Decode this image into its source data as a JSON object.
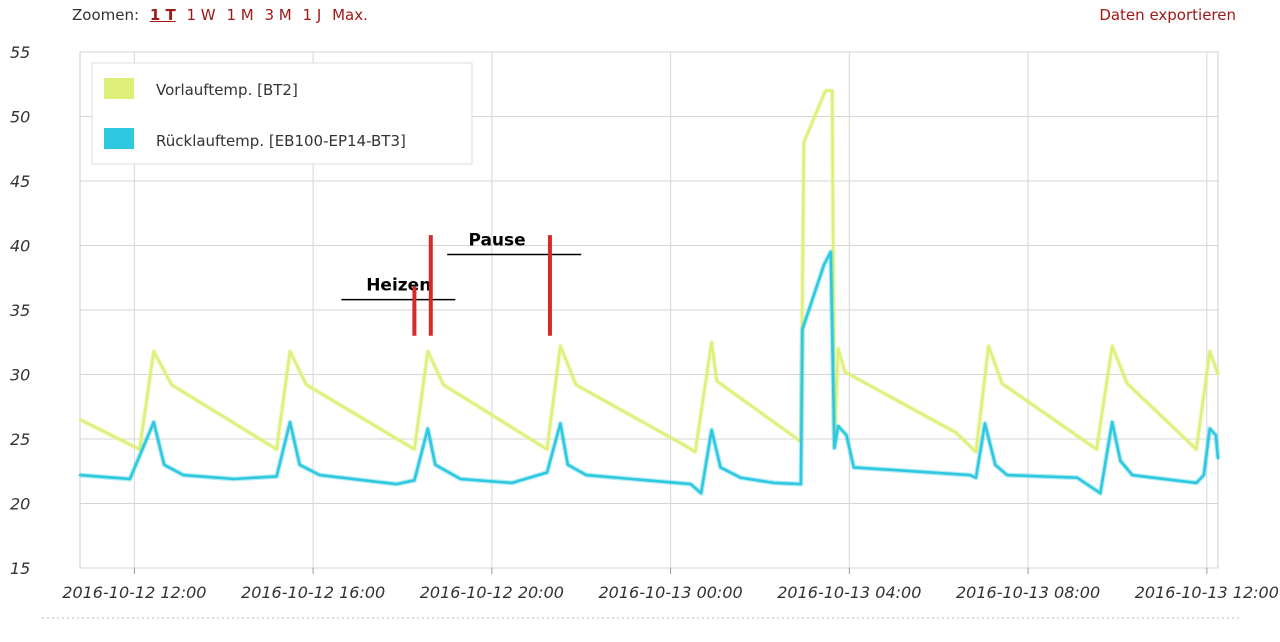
{
  "toolbar": {
    "zoom_label": "Zoomen:",
    "zoom_options": [
      "1 T",
      "1 W",
      "1 M",
      "3 M",
      "1 J",
      "Max."
    ],
    "active_zoom": 0,
    "export_label": "Daten exportieren"
  },
  "chart_data": {
    "type": "line",
    "xlabel": "",
    "ylabel": "",
    "ylim": [
      15,
      55
    ],
    "yticks": [
      "15",
      "20",
      "25",
      "30",
      "35",
      "40",
      "45",
      "50",
      "55"
    ],
    "xlim": [
      "2016-10-12 10:47",
      "2016-10-13 12:15"
    ],
    "xticks": [
      "2016-10-12 12:00",
      "2016-10-12 16:00",
      "2016-10-12 20:00",
      "2016-10-13 00:00",
      "2016-10-13 04:00",
      "2016-10-13 08:00",
      "2016-10-13 12:00"
    ],
    "grid": true,
    "legend": "top-left",
    "series": [
      {
        "name": "Vorlauftemp. [BT2]",
        "color": "#dff07a",
        "points": [
          [
            "2016-10-12 10:47",
            26.5
          ],
          [
            "2016-10-12 12:07",
            24.2
          ],
          [
            "2016-10-12 12:26",
            31.8
          ],
          [
            "2016-10-12 12:50",
            29.2
          ],
          [
            "2016-10-12 15:11",
            24.2
          ],
          [
            "2016-10-12 15:29",
            31.8
          ],
          [
            "2016-10-12 15:51",
            29.2
          ],
          [
            "2016-10-12 18:16",
            24.2
          ],
          [
            "2016-10-12 18:34",
            31.8
          ],
          [
            "2016-10-12 18:55",
            29.2
          ],
          [
            "2016-10-12 21:14",
            24.2
          ],
          [
            "2016-10-12 21:32",
            32.2
          ],
          [
            "2016-10-12 21:53",
            29.2
          ],
          [
            "2016-10-13 00:19",
            24.5
          ],
          [
            "2016-10-13 00:33",
            24.0
          ],
          [
            "2016-10-13 00:55",
            32.5
          ],
          [
            "2016-10-13 01:02",
            29.5
          ],
          [
            "2016-10-13 02:55",
            24.8
          ],
          [
            "2016-10-13 02:59",
            48.0
          ],
          [
            "2016-10-13 03:28",
            52.0
          ],
          [
            "2016-10-13 03:37",
            52.0
          ],
          [
            "2016-10-13 03:40",
            24.5
          ],
          [
            "2016-10-13 03:45",
            32.0
          ],
          [
            "2016-10-13 03:54",
            30.2
          ],
          [
            "2016-10-13 06:23",
            25.5
          ],
          [
            "2016-10-13 06:50",
            24.0
          ],
          [
            "2016-10-13 07:07",
            32.2
          ],
          [
            "2016-10-13 07:25",
            29.3
          ],
          [
            "2016-10-13 09:32",
            24.2
          ],
          [
            "2016-10-13 09:53",
            32.2
          ],
          [
            "2016-10-13 10:13",
            29.3
          ],
          [
            "2016-10-13 11:46",
            24.2
          ],
          [
            "2016-10-13 12:04",
            31.8
          ],
          [
            "2016-10-13 12:15",
            30.0
          ]
        ]
      },
      {
        "name": "Rücklauftemp. [EB100-EP14-BT3]",
        "color": "#2ec8e0",
        "points": [
          [
            "2016-10-12 10:47",
            22.2
          ],
          [
            "2016-10-12 11:54",
            21.9
          ],
          [
            "2016-10-12 12:26",
            26.3
          ],
          [
            "2016-10-12 12:40",
            23.0
          ],
          [
            "2016-10-12 13:06",
            22.2
          ],
          [
            "2016-10-12 14:14",
            21.9
          ],
          [
            "2016-10-12 15:11",
            22.1
          ],
          [
            "2016-10-12 15:29",
            26.3
          ],
          [
            "2016-10-12 15:42",
            23.0
          ],
          [
            "2016-10-12 16:09",
            22.2
          ],
          [
            "2016-10-12 17:52",
            21.5
          ],
          [
            "2016-10-12 18:16",
            21.8
          ],
          [
            "2016-10-12 18:34",
            25.8
          ],
          [
            "2016-10-12 18:44",
            23.0
          ],
          [
            "2016-10-12 19:18",
            21.9
          ],
          [
            "2016-10-12 20:27",
            21.6
          ],
          [
            "2016-10-12 21:14",
            22.4
          ],
          [
            "2016-10-12 21:32",
            26.2
          ],
          [
            "2016-10-12 21:42",
            23.0
          ],
          [
            "2016-10-12 22:07",
            22.2
          ],
          [
            "2016-10-13 00:27",
            21.5
          ],
          [
            "2016-10-13 00:41",
            20.8
          ],
          [
            "2016-10-13 00:55",
            25.7
          ],
          [
            "2016-10-13 01:07",
            22.8
          ],
          [
            "2016-10-13 01:34",
            22.0
          ],
          [
            "2016-10-13 02:19",
            21.6
          ],
          [
            "2016-10-13 02:55",
            21.5
          ],
          [
            "2016-10-13 02:57",
            33.5
          ],
          [
            "2016-10-13 03:26",
            38.5
          ],
          [
            "2016-10-13 03:35",
            39.5
          ],
          [
            "2016-10-13 03:40",
            24.3
          ],
          [
            "2016-10-13 03:45",
            26.0
          ],
          [
            "2016-10-13 03:56",
            25.3
          ],
          [
            "2016-10-13 04:06",
            22.8
          ],
          [
            "2016-10-13 06:42",
            22.2
          ],
          [
            "2016-10-13 06:50",
            22.0
          ],
          [
            "2016-10-13 07:02",
            26.2
          ],
          [
            "2016-10-13 07:16",
            23.0
          ],
          [
            "2016-10-13 07:32",
            22.2
          ],
          [
            "2016-10-13 09:06",
            22.0
          ],
          [
            "2016-10-13 09:37",
            20.8
          ],
          [
            "2016-10-13 09:53",
            26.3
          ],
          [
            "2016-10-13 10:04",
            23.3
          ],
          [
            "2016-10-13 10:20",
            22.2
          ],
          [
            "2016-10-13 11:46",
            21.6
          ],
          [
            "2016-10-13 11:56",
            22.2
          ],
          [
            "2016-10-13 12:04",
            25.8
          ],
          [
            "2016-10-13 12:12",
            25.3
          ],
          [
            "2016-10-13 12:15",
            23.5
          ]
        ]
      }
    ],
    "annotations": [
      {
        "label": "Heizen",
        "line_from": "2016-10-12 16:38",
        "line_to": "2016-10-12 19:11",
        "line_y": 35.8,
        "label_time": "2016-10-12 17:55",
        "label_y": 36.5
      },
      {
        "label": "Pause",
        "line_from": "2016-10-12 19:00",
        "line_to": "2016-10-12 22:00",
        "line_y": 39.3,
        "label_time": "2016-10-12 20:07",
        "label_y": 40.0
      }
    ],
    "markers": [
      {
        "time": "2016-10-12 18:16",
        "from": 33.0,
        "to": 36.8
      },
      {
        "time": "2016-10-12 18:38",
        "from": 33.0,
        "to": 40.8
      },
      {
        "time": "2016-10-12 21:18",
        "from": 33.0,
        "to": 40.8
      }
    ]
  }
}
